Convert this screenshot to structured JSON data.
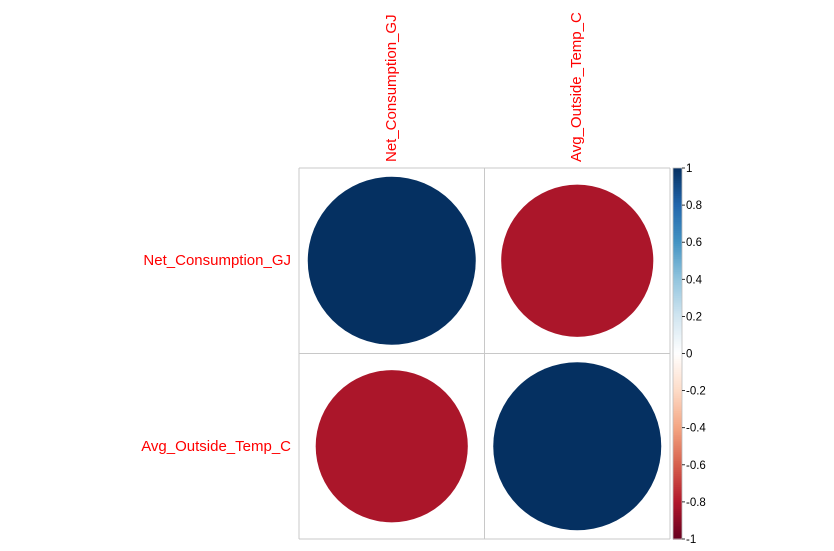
{
  "chart_data": {
    "type": "heatmap",
    "variables": [
      "Net_Consumption_GJ",
      "Avg_Outside_Temp_C"
    ],
    "matrix": [
      [
        1.0,
        -0.82
      ],
      [
        -0.82,
        1.0
      ]
    ],
    "method": "circle",
    "colorbar": {
      "range": [
        -1,
        1
      ],
      "ticks": [
        "1",
        "0.8",
        "0.6",
        "0.4",
        "0.2",
        "0",
        "-0.2",
        "-0.4",
        "-0.6",
        "-0.8",
        "-1"
      ],
      "tick_values": [
        1,
        0.8,
        0.6,
        0.4,
        0.2,
        0,
        -0.2,
        -0.4,
        -0.6,
        -0.8,
        -1
      ]
    },
    "label_color": "#ff0000",
    "palette": [
      "#67001f",
      "#b2182b",
      "#d6604d",
      "#f4a582",
      "#fddbc7",
      "#ffffff",
      "#d1e5f0",
      "#92c5de",
      "#4393c3",
      "#2166ac",
      "#053061"
    ]
  }
}
